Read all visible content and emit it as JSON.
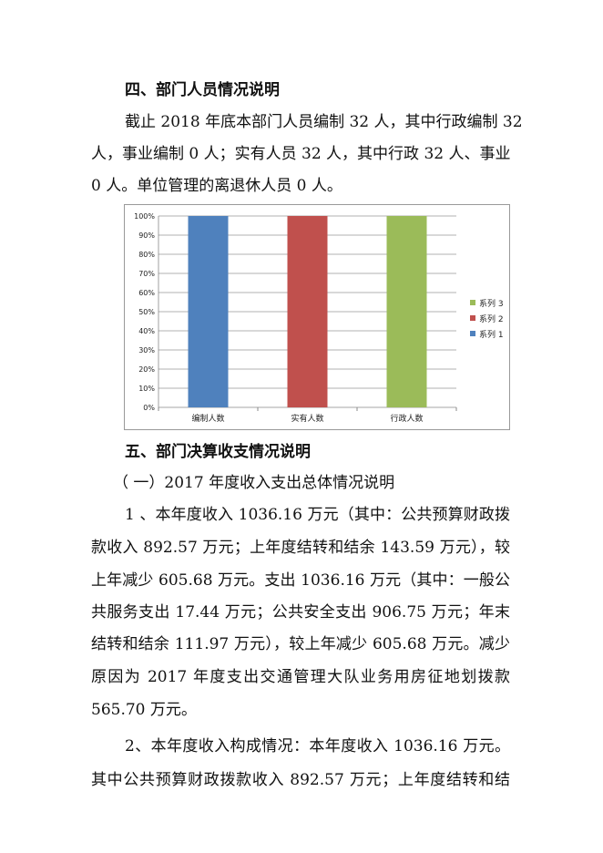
{
  "section4": {
    "heading": "四、部门人员情况说明",
    "lines": [
      "截止 2018 年底本部门人员编制 32 人，其中行政编制 32",
      "人，事业编制 0 人；实有人员 32 人，其中行政 32 人、事业",
      "0 人。单位管理的离退休人员 0 人。"
    ]
  },
  "chart_data": {
    "type": "bar",
    "stacked": "percent",
    "categories": [
      "编制人数",
      "实有人数",
      "行政人数"
    ],
    "series": [
      {
        "name": "系列 1",
        "values": [
          100,
          0,
          0
        ],
        "color": "#4F81BD"
      },
      {
        "name": "系列 2",
        "values": [
          0,
          100,
          0
        ],
        "color": "#C0504D"
      },
      {
        "name": "系列 3",
        "values": [
          0,
          0,
          100
        ],
        "color": "#9BBB59"
      }
    ],
    "yticks": [
      "0%",
      "10%",
      "20%",
      "30%",
      "40%",
      "50%",
      "60%",
      "70%",
      "80%",
      "90%",
      "100%"
    ],
    "ylim": [
      0,
      100
    ],
    "grid": true,
    "legend": "right",
    "legend_order": [
      "系列 3",
      "系列 2",
      "系列 1"
    ]
  },
  "section5": {
    "heading": "五、部门决算收支情况说明",
    "subheading": "（ 一）2017 年度收入支出总体情况说明",
    "lines": [
      "1 、本年度收入 1036.16 万元（其中：公共预算财政拨",
      "款收入 892.57 万元；上年度结转和结余 143.59 万元），较",
      "上年减少 605.68 万元。支出 1036.16 万元（其中：一般公",
      "共服务支出 17.44 万元；公共安全支出 906.75 万元；年末",
      "结转和结余 111.97 万元），较上年减少 605.68 万元。减少",
      "原因为 2017 年度支出交通管理大队业务用房征地划拨款",
      "565.70 万元。",
      "2、本年度收入构成情况：本年度收入 1036.16 万元。",
      "其中公共预算财政拨款收入 892.57 万元；上年度结转和结"
    ]
  }
}
